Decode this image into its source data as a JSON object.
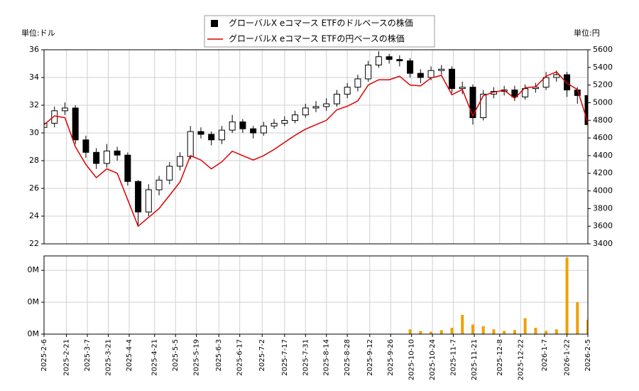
{
  "chart_data": [
    {
      "type": "candlestick",
      "y_unit_label": "単位:ドル",
      "y2_unit_label": "単位:円",
      "x": [
        "2025-2-6",
        "2025-2-13",
        "2025-2-20",
        "2025-2-27",
        "2025-3-6",
        "2025-3-13",
        "2025-3-20",
        "2025-3-27",
        "2025-4-3",
        "2025-4-10",
        "2025-4-17",
        "2025-4-24",
        "2025-5-1",
        "2025-5-8",
        "2025-5-15",
        "2025-5-22",
        "2025-5-29",
        "2025-6-5",
        "2025-6-12",
        "2025-6-19",
        "2025-6-26",
        "2025-7-3",
        "2025-7-10",
        "2025-7-17",
        "2025-7-24",
        "2025-7-31",
        "2025-8-7",
        "2025-8-14",
        "2025-8-21",
        "2025-8-28",
        "2025-9-4",
        "2025-9-11",
        "2025-9-18",
        "2025-9-25",
        "2025-10-2",
        "2025-10-9",
        "2025-10-16",
        "2025-10-23",
        "2025-10-30",
        "2025-11-6",
        "2025-11-13",
        "2025-11-20",
        "2025-11-27",
        "2025-12-4",
        "2025-12-11",
        "2025-12-18",
        "2025-12-25",
        "2026-1-1",
        "2026-1-8",
        "2026-1-15",
        "2026-1-22",
        "2026-1-29",
        "2026-2-5"
      ],
      "xlim": [
        "2025-2-6",
        "2026-2-5"
      ],
      "xticks": [
        "2025-2-6",
        "2025-2-21",
        "2025-3-7",
        "2025-3-21",
        "2025-4-4",
        "2025-4-21",
        "2025-5-5",
        "2025-5-19",
        "2025-6-3",
        "2025-6-17",
        "2025-7-2",
        "2025-7-17",
        "2025-7-31",
        "2025-8-14",
        "2025-8-28",
        "2025-9-12",
        "2025-9-26",
        "2025-10-10",
        "2025-10-24",
        "2025-11-7",
        "2025-11-21",
        "2025-12-8",
        "2025-12-22",
        "2026-1-7",
        "2026-1-22",
        "2026-2-5"
      ],
      "ylim": [
        22,
        36
      ],
      "yticks": [
        22,
        24,
        26,
        28,
        30,
        32,
        34,
        36
      ],
      "y2lim": [
        3400,
        5600
      ],
      "y2ticks": [
        3400,
        3600,
        3800,
        4000,
        4200,
        4400,
        4600,
        4800,
        5000,
        5200,
        5400,
        5600
      ],
      "grid": true,
      "series": [
        {
          "name": "グローバルX eコマース ETFのドルベースの株価",
          "color": "#000000",
          "up_color": "#ffffff",
          "open": [
            30.4,
            30.7,
            31.6,
            31.8,
            29.5,
            28.6,
            27.8,
            28.7,
            28.4,
            26.5,
            24.3,
            25.9,
            26.6,
            27.6,
            28.3,
            30.1,
            29.9,
            29.5,
            30.2,
            30.8,
            30.3,
            30.0,
            30.5,
            30.7,
            30.9,
            31.3,
            31.8,
            31.9,
            32.1,
            32.8,
            33.3,
            33.9,
            34.9,
            35.5,
            35.3,
            35.2,
            34.3,
            34.0,
            34.5,
            34.6,
            33.2,
            33.3,
            31.1,
            32.8,
            33.0,
            33.1,
            32.6,
            33.2,
            33.3,
            34.0,
            34.2,
            33.1,
            32.7
          ],
          "high": [
            31.0,
            31.9,
            32.2,
            32.0,
            29.8,
            28.9,
            29.2,
            29.0,
            28.6,
            26.6,
            26.3,
            26.9,
            27.9,
            28.6,
            30.5,
            30.4,
            30.1,
            30.5,
            31.3,
            31.0,
            30.5,
            30.8,
            31.0,
            31.2,
            31.6,
            32.1,
            32.3,
            32.5,
            33.1,
            33.6,
            34.2,
            35.2,
            35.9,
            35.7,
            35.6,
            35.4,
            34.6,
            34.8,
            34.9,
            34.8,
            33.7,
            33.5,
            33.1,
            33.3,
            33.4,
            33.4,
            33.5,
            33.6,
            34.4,
            34.5,
            34.4,
            33.3,
            32.9
          ],
          "low": [
            30.1,
            30.4,
            31.3,
            29.2,
            28.2,
            27.4,
            27.5,
            28.0,
            26.2,
            23.3,
            24.0,
            25.5,
            26.3,
            27.3,
            28.1,
            29.6,
            29.1,
            29.2,
            30.0,
            30.0,
            29.6,
            29.8,
            30.3,
            30.5,
            30.7,
            31.1,
            31.5,
            31.6,
            31.9,
            32.5,
            33.0,
            33.7,
            34.7,
            35.0,
            34.8,
            34.0,
            33.6,
            33.8,
            34.2,
            32.9,
            32.8,
            30.6,
            30.9,
            32.5,
            32.7,
            32.3,
            32.4,
            32.9,
            33.1,
            33.7,
            32.6,
            32.1,
            30.0
          ],
          "close": [
            30.7,
            31.6,
            31.8,
            29.5,
            28.6,
            27.8,
            28.7,
            28.4,
            26.5,
            24.3,
            25.9,
            26.6,
            27.6,
            28.3,
            30.1,
            29.9,
            29.5,
            30.2,
            30.8,
            30.3,
            30.0,
            30.5,
            30.7,
            30.9,
            31.3,
            31.8,
            31.9,
            32.1,
            32.8,
            33.3,
            33.9,
            34.9,
            35.5,
            35.3,
            35.2,
            34.3,
            34.0,
            34.5,
            34.6,
            33.2,
            33.3,
            31.1,
            32.8,
            33.0,
            33.1,
            32.6,
            33.2,
            33.3,
            34.0,
            34.2,
            33.1,
            32.7,
            30.6
          ]
        },
        {
          "name": "グローバルX eコマース ETFの円ベースの株価",
          "color": "#dd0000",
          "axis": "y2",
          "values": [
            4750,
            4850,
            4830,
            4500,
            4300,
            4150,
            4250,
            4200,
            3900,
            3600,
            3700,
            3800,
            3950,
            4100,
            4400,
            4350,
            4250,
            4330,
            4450,
            4400,
            4350,
            4400,
            4470,
            4550,
            4630,
            4700,
            4750,
            4800,
            4920,
            4960,
            5020,
            5200,
            5260,
            5260,
            5300,
            5200,
            5190,
            5280,
            5310,
            5090,
            5150,
            4850,
            5080,
            5120,
            5140,
            5050,
            5170,
            5180,
            5300,
            5350,
            5220,
            5150,
            4770
          ]
        }
      ]
    },
    {
      "type": "bar",
      "x": [
        "2025-2-6",
        "2025-2-13",
        "2025-2-20",
        "2025-2-27",
        "2025-3-6",
        "2025-3-13",
        "2025-3-20",
        "2025-3-27",
        "2025-4-3",
        "2025-4-10",
        "2025-4-17",
        "2025-4-24",
        "2025-5-1",
        "2025-5-8",
        "2025-5-15",
        "2025-5-22",
        "2025-5-29",
        "2025-6-5",
        "2025-6-12",
        "2025-6-19",
        "2025-6-26",
        "2025-7-3",
        "2025-7-10",
        "2025-7-17",
        "2025-7-24",
        "2025-7-31",
        "2025-8-7",
        "2025-8-14",
        "2025-8-21",
        "2025-8-28",
        "2025-9-4",
        "2025-9-11",
        "2025-9-18",
        "2025-9-25",
        "2025-10-2",
        "2025-10-9",
        "2025-10-16",
        "2025-10-23",
        "2025-10-30",
        "2025-11-6",
        "2025-11-13",
        "2025-11-20",
        "2025-11-27",
        "2025-12-4",
        "2025-12-11",
        "2025-12-18",
        "2025-12-25",
        "2026-1-1",
        "2026-1-8",
        "2026-1-15",
        "2026-1-22",
        "2026-1-29",
        "2026-2-5"
      ],
      "xlim": [
        "2025-2-6",
        "2026-2-5"
      ],
      "xticks": [
        "2025-2-6",
        "2025-2-21",
        "2025-3-7",
        "2025-3-21",
        "2025-4-4",
        "2025-4-21",
        "2025-5-5",
        "2025-5-19",
        "2025-6-3",
        "2025-6-17",
        "2025-7-2",
        "2025-7-17",
        "2025-7-31",
        "2025-8-14",
        "2025-8-28",
        "2025-9-12",
        "2025-9-26",
        "2025-10-10",
        "2025-10-24",
        "2025-11-7",
        "2025-11-21",
        "2025-12-8",
        "2025-12-22",
        "2026-1-7",
        "2026-1-22",
        "2026-2-5"
      ],
      "ylim": [
        0,
        490000
      ],
      "yticks": [
        {
          "value": 0,
          "label": "0M"
        },
        {
          "value": 200000,
          "label": "0M"
        },
        {
          "value": 400000,
          "label": "0M"
        }
      ],
      "grid": true,
      "color": "#f0a000",
      "values": [
        0,
        0,
        0,
        0,
        0,
        0,
        0,
        0,
        0,
        0,
        0,
        0,
        0,
        0,
        0,
        0,
        0,
        0,
        0,
        0,
        0,
        0,
        0,
        0,
        0,
        0,
        0,
        0,
        0,
        0,
        0,
        0,
        0,
        0,
        0,
        30000,
        20000,
        15000,
        25000,
        40000,
        120000,
        60000,
        50000,
        30000,
        20000,
        25000,
        100000,
        40000,
        20000,
        30000,
        480000,
        200000,
        90000
      ]
    }
  ]
}
